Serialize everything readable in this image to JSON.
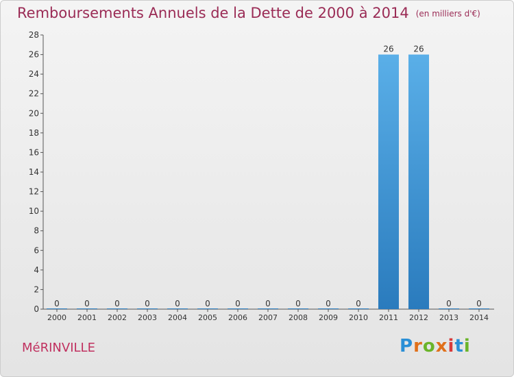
{
  "header": {
    "title": "Remboursements Annuels de la Dette de 2000 à 2014",
    "subtitle": "(en milliers d'€)"
  },
  "commune": "MéRINVILLE",
  "logo": {
    "text": "Proxiti",
    "letters": [
      "P",
      "r",
      "o",
      "x",
      "i",
      "t",
      "i"
    ],
    "colors": [
      "#2a8fd6",
      "#e0701a",
      "#6ab42a",
      "#e0701a",
      "#d83a3a",
      "#2a8fd6",
      "#6ab42a"
    ]
  },
  "chart_data": {
    "type": "bar",
    "title": "Remboursements Annuels de la Dette de 2000 à 2014",
    "subtitle": "(en milliers d'€)",
    "categories": [
      "2000",
      "2001",
      "2002",
      "2003",
      "2004",
      "2005",
      "2006",
      "2007",
      "2008",
      "2009",
      "2010",
      "2011",
      "2012",
      "2013",
      "2014"
    ],
    "values": [
      0,
      0,
      0,
      0,
      0,
      0,
      0,
      0,
      0,
      0,
      0,
      26,
      26,
      0,
      0
    ],
    "data_labels": [
      "0",
      "0",
      "0",
      "0",
      "0",
      "0",
      "0",
      "0",
      "0",
      "0",
      "0",
      "26",
      "26",
      "0",
      "0"
    ],
    "ylim": [
      0,
      28
    ],
    "yticks": [
      0,
      2,
      4,
      6,
      8,
      10,
      12,
      14,
      16,
      18,
      20,
      22,
      24,
      26,
      28
    ],
    "grid": false,
    "colors": {
      "bar_top": "#5aafe8",
      "bar_bottom": "#2a7bbd",
      "axis": "#555555",
      "label": "#333333"
    }
  }
}
